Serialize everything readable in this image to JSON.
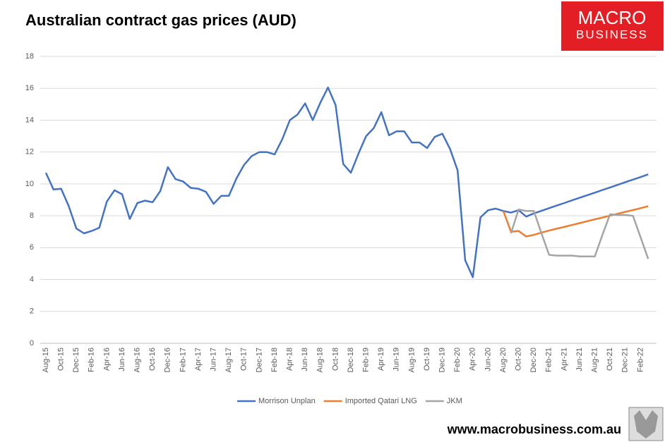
{
  "chart_data": {
    "type": "line",
    "title": "Australian contract gas prices (AUD)",
    "logo": [
      "MACRO",
      "BUSINESS"
    ],
    "footer": "www.macrobusiness.com.au",
    "categories": [
      "Aug-15",
      null,
      "Oct-15",
      null,
      "Dec-15",
      null,
      "Feb-16",
      null,
      "Apr-16",
      null,
      "Jun-16",
      null,
      "Aug-16",
      null,
      "Oct-16",
      null,
      "Dec-16",
      null,
      "Feb-17",
      null,
      "Apr-17",
      null,
      "Jun-17",
      null,
      "Aug-17",
      null,
      "Oct-17",
      null,
      "Dec-17",
      null,
      "Feb-18",
      null,
      "Apr-18",
      null,
      "Jun-18",
      null,
      "Aug-18",
      null,
      "Oct-18",
      null,
      "Dec-18",
      null,
      "Feb-19",
      null,
      "Apr-19",
      null,
      "Jun-19",
      null,
      "Aug-19",
      null,
      "Oct-19",
      null,
      "Dec-19",
      null,
      "Feb-20",
      null,
      "Apr-20",
      null,
      "Jun-20",
      null,
      "Aug-20",
      null,
      "Oct-20",
      null,
      "Dec-20",
      null,
      "Feb-21",
      null,
      "Apr-21",
      null,
      "Jun-21",
      null,
      "Aug-21",
      null,
      "Oct-21",
      null,
      "Dec-21",
      null,
      "Feb-22",
      null
    ],
    "series": [
      {
        "name": "Morrison Unplan",
        "color": "#4472c4",
        "values": [
          10.7,
          9.65,
          9.7,
          8.6,
          7.2,
          6.9,
          7.05,
          7.25,
          8.9,
          9.6,
          9.35,
          7.8,
          8.8,
          8.95,
          8.85,
          9.55,
          11.05,
          10.3,
          10.15,
          9.75,
          9.7,
          9.5,
          8.75,
          9.25,
          9.25,
          10.35,
          11.2,
          11.75,
          12.0,
          12.0,
          11.85,
          12.8,
          14.0,
          14.35,
          15.05,
          14.0,
          15.1,
          16.05,
          14.95,
          11.25,
          10.7,
          11.9,
          13.0,
          13.5,
          14.5,
          13.05,
          13.3,
          13.3,
          12.6,
          12.6,
          12.25,
          12.95,
          13.15,
          12.2,
          10.85,
          5.2,
          4.15,
          7.9,
          8.35,
          8.45,
          8.3,
          8.2,
          8.35,
          7.95,
          8.15,
          8.31,
          8.48,
          8.64,
          8.8,
          8.97,
          9.13,
          9.29,
          9.45,
          9.62,
          9.78,
          9.94,
          10.11,
          10.27,
          10.43,
          10.6
        ]
      },
      {
        "name": "Imported Qatari LNG",
        "color": "#ed7d31",
        "values": [
          null,
          null,
          null,
          null,
          null,
          null,
          null,
          null,
          null,
          null,
          null,
          null,
          null,
          null,
          null,
          null,
          null,
          null,
          null,
          null,
          null,
          null,
          null,
          null,
          null,
          null,
          null,
          null,
          null,
          null,
          null,
          null,
          null,
          null,
          null,
          null,
          null,
          null,
          null,
          null,
          null,
          null,
          null,
          null,
          null,
          null,
          null,
          null,
          null,
          null,
          null,
          null,
          null,
          null,
          null,
          null,
          null,
          null,
          null,
          null,
          8.3,
          7.0,
          7.05,
          6.7,
          6.8,
          6.95,
          7.07,
          7.19,
          7.3,
          7.42,
          7.54,
          7.66,
          7.78,
          7.89,
          8.01,
          8.13,
          8.25,
          8.36,
          8.48,
          8.6
        ]
      },
      {
        "name": "JKM",
        "color": "#a5a5a5",
        "values": [
          null,
          null,
          null,
          null,
          null,
          null,
          null,
          null,
          null,
          null,
          null,
          null,
          null,
          null,
          null,
          null,
          null,
          null,
          null,
          null,
          null,
          null,
          null,
          null,
          null,
          null,
          null,
          null,
          null,
          null,
          null,
          null,
          null,
          null,
          null,
          null,
          null,
          null,
          null,
          null,
          null,
          null,
          null,
          null,
          null,
          null,
          null,
          null,
          null,
          null,
          null,
          null,
          null,
          null,
          null,
          null,
          null,
          null,
          null,
          null,
          null,
          6.9,
          8.4,
          8.3,
          8.3,
          6.9,
          5.55,
          5.5,
          5.5,
          5.5,
          5.45,
          5.45,
          5.45,
          6.8,
          8.1,
          8.05,
          8.05,
          8.0,
          6.65,
          5.3
        ]
      }
    ],
    "ylim": [
      0,
      18
    ],
    "yticks": [
      0,
      2,
      4,
      6,
      8,
      10,
      12,
      14,
      16,
      18
    ],
    "grid": true,
    "legend": "bottom"
  }
}
